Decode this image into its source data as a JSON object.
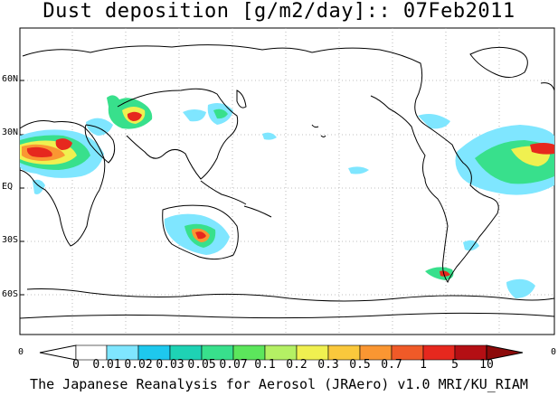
{
  "title": "Dust deposition [g/m2/day]:: 07Feb2011",
  "footer": "The Japanese Reanalysis for Aerosol (JRAero) v1.0 MRI/KU_RIAM",
  "lat_labels": [
    "60N",
    "30N",
    "EQ",
    "30S",
    "60S"
  ],
  "edge_labels": [
    "0",
    "0"
  ],
  "colorbar": {
    "labels": [
      "0",
      "0.01",
      "0.02",
      "0.03",
      "0.05",
      "0.07",
      "0.1",
      "0.2",
      "0.3",
      "0.5",
      "0.7",
      "1",
      "5",
      "10"
    ],
    "colors": [
      "#ffffff",
      "#ffffff",
      "#7fe6ff",
      "#1ec8ee",
      "#1ed2b4",
      "#38e08c",
      "#5ce65c",
      "#b4f064",
      "#f0f050",
      "#fac83c",
      "#fa9632",
      "#f05a28",
      "#e6281e",
      "#b40f14",
      "#8c0a0a",
      "#5a0000"
    ],
    "accent": "#8c0a0a"
  }
}
